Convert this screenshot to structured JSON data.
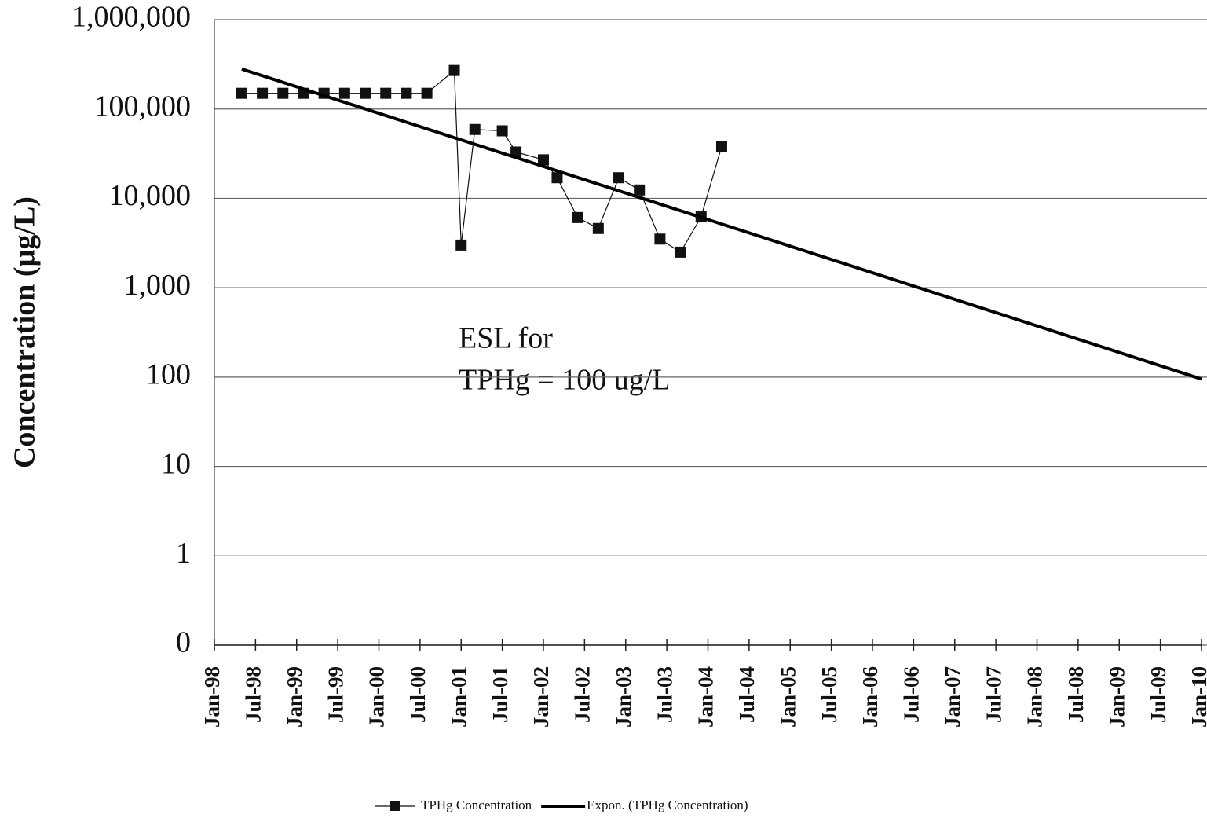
{
  "chart_data": {
    "type": "line",
    "y_label": "Concentration (µg/L)",
    "log_scale_y": true,
    "grid": true,
    "legend_position": "bottom",
    "annotation": [
      "ESL for",
      "TPHg = 100 ug/L"
    ],
    "xlim": [
      "1998-01",
      "2010-01"
    ],
    "xticks": [
      {
        "value": "1998-01",
        "label": "Jan-98"
      },
      {
        "value": "1998-07",
        "label": "Jul-98"
      },
      {
        "value": "1999-01",
        "label": "Jan-99"
      },
      {
        "value": "1999-07",
        "label": "Jul-99"
      },
      {
        "value": "2000-01",
        "label": "Jan-00"
      },
      {
        "value": "2000-07",
        "label": "Jul-00"
      },
      {
        "value": "2001-01",
        "label": "Jan-01"
      },
      {
        "value": "2001-07",
        "label": "Jul-01"
      },
      {
        "value": "2002-01",
        "label": "Jan-02"
      },
      {
        "value": "2002-07",
        "label": "Jul-02"
      },
      {
        "value": "2003-01",
        "label": "Jan-03"
      },
      {
        "value": "2003-07",
        "label": "Jul-03"
      },
      {
        "value": "2004-01",
        "label": "Jan-04"
      },
      {
        "value": "2004-07",
        "label": "Jul-04"
      },
      {
        "value": "2005-01",
        "label": "Jan-05"
      },
      {
        "value": "2005-07",
        "label": "Jul-05"
      },
      {
        "value": "2006-01",
        "label": "Jan-06"
      },
      {
        "value": "2006-07",
        "label": "Jul-06"
      },
      {
        "value": "2007-01",
        "label": "Jan-07"
      },
      {
        "value": "2007-07",
        "label": "Jul-07"
      },
      {
        "value": "2008-01",
        "label": "Jan-08"
      },
      {
        "value": "2008-07",
        "label": "Jul-08"
      },
      {
        "value": "2009-01",
        "label": "Jan-09"
      },
      {
        "value": "2009-07",
        "label": "Jul-09"
      },
      {
        "value": "2010-01",
        "label": "Jan-10"
      }
    ],
    "ylim": [
      0.1,
      1000000
    ],
    "yticks": [
      {
        "value": 0.1,
        "label": "0"
      },
      1,
      10,
      100,
      {
        "value": 1000,
        "label": "1,000"
      },
      {
        "value": 10000,
        "label": "10,000"
      },
      {
        "value": 100000,
        "label": "100,000"
      },
      {
        "value": 1000000,
        "label": "1,000,000"
      }
    ],
    "series": [
      {
        "name": "TPHg Concentration",
        "color": "#111111",
        "markers": true,
        "x": [
          "1998-05",
          "1998-08",
          "1998-11",
          "1999-02",
          "1999-05",
          "1999-08",
          "1999-11",
          "2000-02",
          "2000-05",
          "2000-08",
          "2000-12",
          "2001-01",
          "2001-03",
          "2001-07",
          "2001-09",
          "2002-01",
          "2002-03",
          "2002-06",
          "2002-09",
          "2002-12",
          "2003-03",
          "2003-06",
          "2003-09",
          "2003-12",
          "2004-03"
        ],
        "values": [
          150000,
          150000,
          150000,
          150000,
          150000,
          150000,
          150000,
          150000,
          150000,
          150000,
          270000,
          3000,
          59000,
          57000,
          33000,
          27000,
          17000,
          6100,
          4600,
          17000,
          12400,
          3500,
          2500,
          6200,
          38000
        ]
      },
      {
        "name": "Expon. (TPHg Concentration)",
        "color": "#000000",
        "markers": false,
        "x": [
          "1998-05",
          "2010-01"
        ],
        "values": [
          280000,
          95
        ]
      }
    ]
  }
}
